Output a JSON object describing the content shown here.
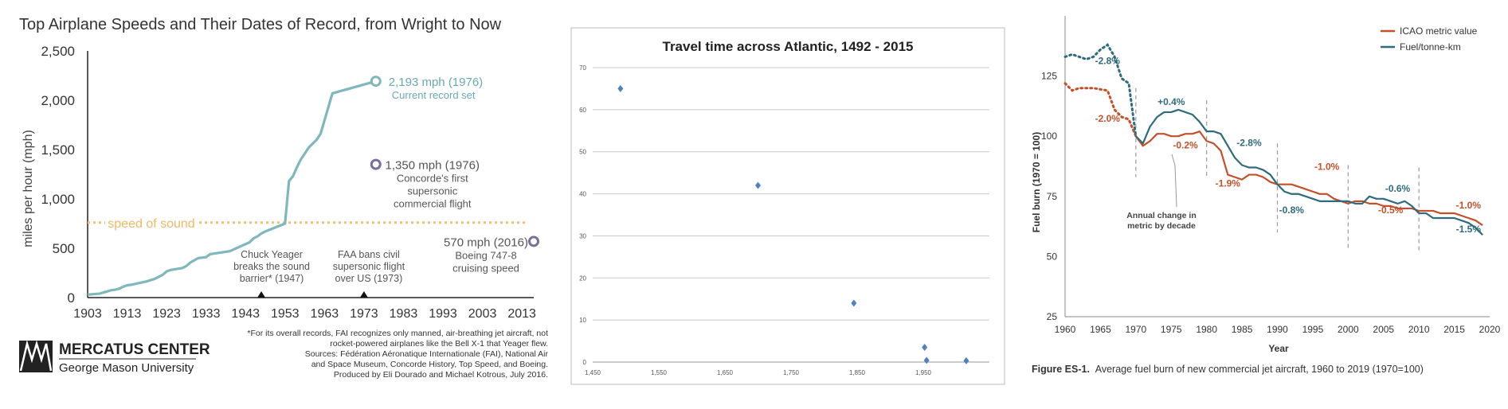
{
  "chart_data": [
    {
      "type": "line",
      "title": "Top Airplane Speeds and Their Dates of Record, from Wright to Now",
      "ylabel": "miles per hour (mph)",
      "xlim": [
        1903,
        2016
      ],
      "ylim": [
        0,
        2500
      ],
      "x_ticks": [
        "1903",
        "1913",
        "1923",
        "1933",
        "1943",
        "1953",
        "1963",
        "1973",
        "1983",
        "1993",
        "2003",
        "2013"
      ],
      "y_ticks": [
        "0",
        "500",
        "1,000",
        "1,500",
        "2,000",
        "2,500"
      ],
      "colors": {
        "record": "#7fb7bd",
        "sound": "#f2c178",
        "points": "#7a6f9b",
        "text": "#555555"
      },
      "series": [
        {
          "x": [
            1903,
            1906,
            1909,
            1910,
            1911,
            1912,
            1913,
            1914,
            1918,
            1920,
            1922,
            1923,
            1924,
            1927,
            1928,
            1929,
            1931,
            1933,
            1934,
            1939,
            1944,
            1945,
            1946,
            1947,
            1948,
            1953,
            1954,
            1955,
            1956,
            1957,
            1958,
            1959,
            1961,
            1962,
            1965,
            1976
          ],
          "y": [
            30,
            40,
            75,
            80,
            90,
            110,
            125,
            130,
            165,
            190,
            230,
            265,
            280,
            300,
            320,
            355,
            400,
            410,
            440,
            470,
            560,
            600,
            620,
            650,
            670,
            750,
            1180,
            1230,
            1320,
            1400,
            1460,
            1520,
            1600,
            1660,
            2070,
            2193
          ]
        }
      ],
      "reference_line": {
        "y": 760,
        "label": "speed of sound"
      },
      "highlight_points": [
        {
          "x": 1976,
          "y": 2193,
          "value_label": "2,193 mph (1976)",
          "caption": "Current record set"
        },
        {
          "x": 1976,
          "y": 1350,
          "value_label": "1,350 mph (1976)",
          "caption": "Concorde's first supersonic commercial flight"
        },
        {
          "x": 2016,
          "y": 570,
          "value_label": "570 mph (2016)",
          "caption": "Boeing 747-8 cruising speed"
        }
      ],
      "events": [
        {
          "x": 1947,
          "label": "Chuck Yeager breaks the sound barrier* (1947)"
        },
        {
          "x": 1973,
          "label": "FAA bans civil supersonic flight over US (1973)"
        }
      ],
      "logo": {
        "name": "MERCATUS CENTER",
        "subname": "George Mason University"
      },
      "footnote": "*For its overall records, FAI recognizes only manned, air-breathing jet aircraft, not rocket-powered airplanes like the Bell X-1 that Yeager flew. Sources: Fédération Aéronatique Internationale (FAI), National Air and Space Museum, Concorde History, Top Speed, and Boeing. Produced by Eli Dourado and Michael Kotrous, July 2016."
    },
    {
      "type": "scatter",
      "title": "Travel time across Atlantic, 1492 - 2015",
      "xlim": [
        1450,
        2050
      ],
      "ylim": [
        0,
        70
      ],
      "x_ticks": [
        "1,450",
        "1,550",
        "1,650",
        "1,750",
        "1,850",
        "1,950"
      ],
      "y_ticks": [
        "0",
        "10",
        "20",
        "30",
        "40",
        "50",
        "60",
        "70"
      ],
      "grid": true,
      "colors": {
        "marker": "#4f81bd"
      },
      "points": [
        {
          "x": 1492,
          "y": 65
        },
        {
          "x": 1700,
          "y": 42
        },
        {
          "x": 1845,
          "y": 14
        },
        {
          "x": 1952,
          "y": 3.5
        },
        {
          "x": 1955,
          "y": 0.4
        },
        {
          "x": 2015,
          "y": 0.3
        }
      ]
    },
    {
      "type": "line",
      "caption_label": "Figure ES-1.",
      "caption": "Average fuel burn of new commercial jet aircraft, 1960 to 2019 (1970=100)",
      "xlabel": "Year",
      "ylabel": "Fuel burn (1970 = 100)",
      "xlim": [
        1960,
        2020
      ],
      "ylim": [
        25,
        150
      ],
      "x_ticks": [
        "1960",
        "1965",
        "1970",
        "1975",
        "1980",
        "1985",
        "1990",
        "1995",
        "2000",
        "2005",
        "2010",
        "2015",
        "2020"
      ],
      "y_ticks": [
        "25",
        "50",
        "75",
        "100",
        "125"
      ],
      "colors": {
        "icao": "#c4502a",
        "fuel": "#2e6b7e",
        "divider": "#999999"
      },
      "legend_position": "top-right",
      "series": [
        {
          "name": "ICAO metric value",
          "x": [
            1960,
            1961,
            1962,
            1964,
            1966,
            1967,
            1968,
            1969,
            1970,
            1971,
            1972,
            1973,
            1974,
            1975,
            1976,
            1977,
            1978,
            1979,
            1980,
            1981,
            1982,
            1983,
            1984,
            1985,
            1986,
            1987,
            1988,
            1989,
            1990,
            1991,
            1992,
            1993,
            1994,
            1995,
            1996,
            1997,
            1998,
            1999,
            2000,
            2001,
            2002,
            2003,
            2004,
            2005,
            2006,
            2007,
            2008,
            2009,
            2010,
            2011,
            2012,
            2013,
            2014,
            2015,
            2016,
            2017,
            2018,
            2019
          ],
          "y": [
            122,
            119,
            120,
            120,
            119,
            111,
            108,
            107,
            100,
            96,
            98,
            101,
            101,
            100,
            100,
            101,
            101,
            102,
            98,
            97,
            94,
            84,
            83,
            82,
            84,
            84,
            83,
            81,
            80,
            80,
            80,
            79,
            78,
            77,
            76,
            76,
            74,
            73,
            72,
            73,
            73,
            72,
            72,
            71,
            71,
            70,
            70,
            70,
            69,
            69,
            69,
            68,
            68,
            68,
            67,
            66,
            65,
            63
          ]
        },
        {
          "name": "Fuel/tonne-km",
          "x": [
            1960,
            1961,
            1962,
            1963,
            1964,
            1965,
            1966,
            1967,
            1968,
            1969,
            1970,
            1971,
            1972,
            1973,
            1974,
            1975,
            1976,
            1977,
            1978,
            1979,
            1980,
            1981,
            1982,
            1983,
            1984,
            1985,
            1986,
            1987,
            1988,
            1989,
            1990,
            1991,
            1992,
            1993,
            1994,
            1995,
            1996,
            1997,
            1998,
            1999,
            2000,
            2001,
            2002,
            2003,
            2004,
            2005,
            2006,
            2007,
            2008,
            2009,
            2010,
            2011,
            2012,
            2013,
            2014,
            2015,
            2016,
            2017,
            2018,
            2019
          ],
          "y": [
            133,
            134,
            133,
            132,
            133,
            136,
            138,
            133,
            124,
            122,
            100,
            97,
            104,
            108,
            110,
            110,
            111,
            110,
            109,
            106,
            102,
            102,
            101,
            96,
            91,
            88,
            87,
            87,
            86,
            84,
            80,
            77,
            76,
            76,
            75,
            74,
            73,
            73,
            73,
            73,
            73,
            72,
            72,
            75,
            74,
            74,
            73,
            72,
            73,
            71,
            68,
            68,
            66,
            66,
            66,
            66,
            65,
            64,
            62,
            59
          ]
        }
      ],
      "decade_dividers": [
        1970,
        1980,
        1990,
        2000,
        2010
      ],
      "annotations": [
        {
          "series": "Fuel/tonne-km",
          "text": "-2.8%",
          "x": 1966,
          "y": 130
        },
        {
          "series": "Fuel/tonne-km",
          "text": "+0.4%",
          "x": 1975,
          "y": 113
        },
        {
          "series": "Fuel/tonne-km",
          "text": "-2.8%",
          "x": 1986,
          "y": 96
        },
        {
          "series": "Fuel/tonne-km",
          "text": "-0.8%",
          "x": 1992,
          "y": 68
        },
        {
          "series": "Fuel/tonne-km",
          "text": "-0.6%",
          "x": 2007,
          "y": 77
        },
        {
          "series": "Fuel/tonne-km",
          "text": "-1.5%",
          "x": 2017,
          "y": 60
        },
        {
          "series": "ICAO metric value",
          "text": "-2.0%",
          "x": 1966,
          "y": 106
        },
        {
          "series": "ICAO metric value",
          "text": "-0.2%",
          "x": 1977,
          "y": 95
        },
        {
          "series": "ICAO metric value",
          "text": "-1.9%",
          "x": 1983,
          "y": 79
        },
        {
          "series": "ICAO metric value",
          "text": "-1.0%",
          "x": 1997,
          "y": 86
        },
        {
          "series": "ICAO metric value",
          "text": "-0.5%",
          "x": 2006,
          "y": 68
        },
        {
          "series": "ICAO metric value",
          "text": "-1.0%",
          "x": 2017,
          "y": 70
        }
      ],
      "note": "Annual change in metric by decade"
    }
  ]
}
